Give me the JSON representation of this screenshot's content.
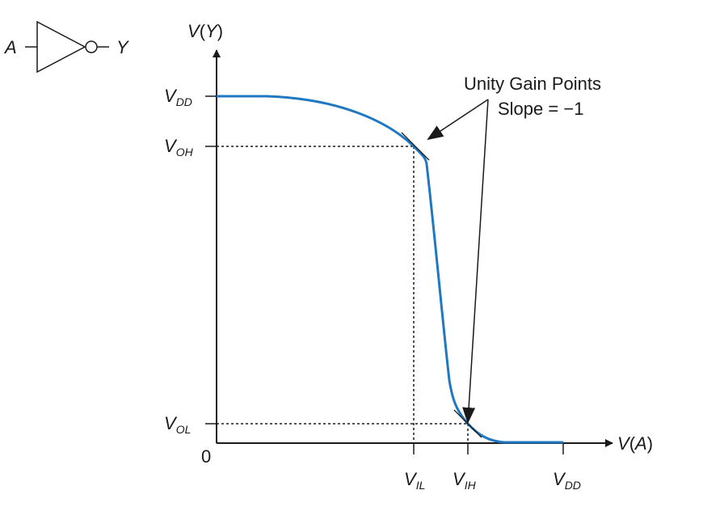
{
  "colors": {
    "curve": "#1f78c1",
    "ink": "#1a1a1a"
  },
  "gate": {
    "input_label": "A",
    "output_label": "Y"
  },
  "axes": {
    "y_label": {
      "v": "V",
      "open": "(",
      "arg": "Y",
      "close": ")"
    },
    "x_label": {
      "v": "V",
      "open": "(",
      "arg": "A",
      "close": ")"
    },
    "origin": "0"
  },
  "y_ticks": [
    {
      "id": "vdd",
      "main": "V",
      "sub": "DD"
    },
    {
      "id": "voh",
      "main": "V",
      "sub": "OH"
    },
    {
      "id": "vol",
      "main": "V",
      "sub": "OL"
    }
  ],
  "x_ticks": [
    {
      "id": "vil",
      "main": "V",
      "sub": "IL"
    },
    {
      "id": "vih",
      "main": "V",
      "sub": "IH"
    },
    {
      "id": "vdd",
      "main": "V",
      "sub": "DD"
    }
  ],
  "annotation": {
    "line1": "Unity Gain Points",
    "line2": "Slope = −1"
  }
}
